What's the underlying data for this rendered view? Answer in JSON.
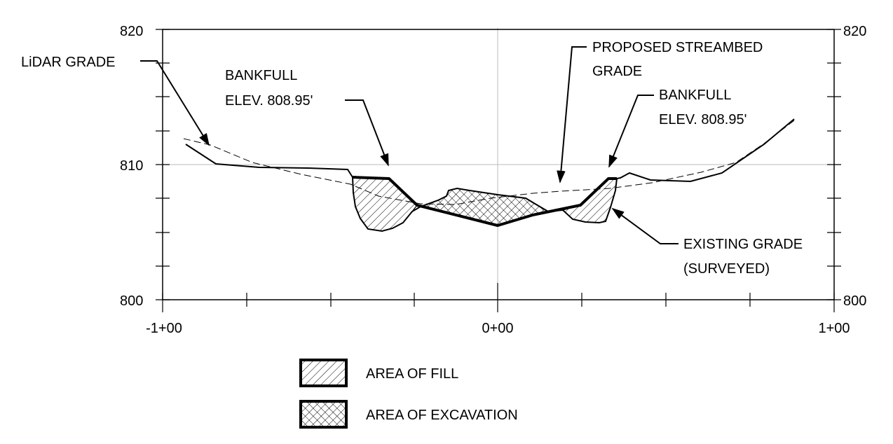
{
  "y_axis": {
    "ticks": [
      "820",
      "810",
      "800"
    ],
    "right_ticks": [
      "820",
      "800"
    ]
  },
  "x_axis": {
    "ticks": [
      "-1+00",
      "0+00",
      "1+00"
    ]
  },
  "callouts": {
    "lidar": "LiDAR GRADE",
    "bankfull_left_1": "BANKFULL",
    "bankfull_left_2": "ELEV. 808.95'",
    "proposed_1": "PROPOSED STREAMBED",
    "proposed_2": "GRADE",
    "bankfull_right_1": "BANKFULL",
    "bankfull_right_2": "ELEV. 808.95'",
    "existing_1": "EXISTING GRADE",
    "existing_2": "(SURVEYED)"
  },
  "legend": {
    "fill": "AREA OF FILL",
    "excavation": "AREA OF EXCAVATION"
  }
}
